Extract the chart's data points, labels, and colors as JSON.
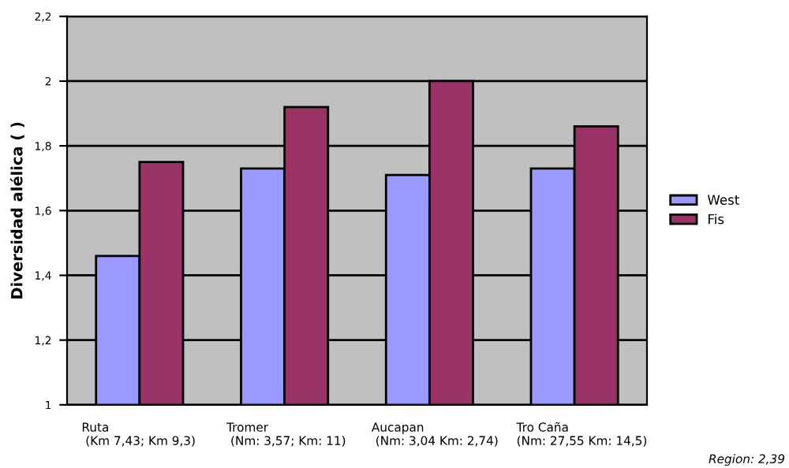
{
  "chart_data": {
    "type": "bar",
    "ylabel": "Diversidad alélica ( )",
    "categories": [
      "Ruta\n (Km 7,43; Km 9,3)",
      "Tromer\n (Nm: 3,57; Km: 11)",
      "Aucapan\n (Nm: 3,04 Km: 2,74)",
      "Tro Caña\n(Nm: 27,55 Km: 14,5)"
    ],
    "series": [
      {
        "name": "West",
        "color": "#9999ff",
        "values": [
          1.46,
          1.73,
          1.71,
          1.73
        ]
      },
      {
        "name": "Fis",
        "color": "#993366",
        "values": [
          1.75,
          1.92,
          2.0,
          1.86
        ]
      }
    ],
    "ylim": [
      1,
      2.2
    ],
    "yticks": [
      1,
      {
        "value": 1.2,
        "label": "1,2"
      },
      {
        "value": 1.4,
        "label": "1,4"
      },
      {
        "value": 1.6,
        "label": "1,6"
      },
      {
        "value": 1.8,
        "label": "1,8"
      },
      2,
      {
        "value": 2.2,
        "label": "2,2"
      }
    ],
    "grid": "y",
    "legend": "right",
    "annotations": [
      "Region: 2,39"
    ]
  }
}
